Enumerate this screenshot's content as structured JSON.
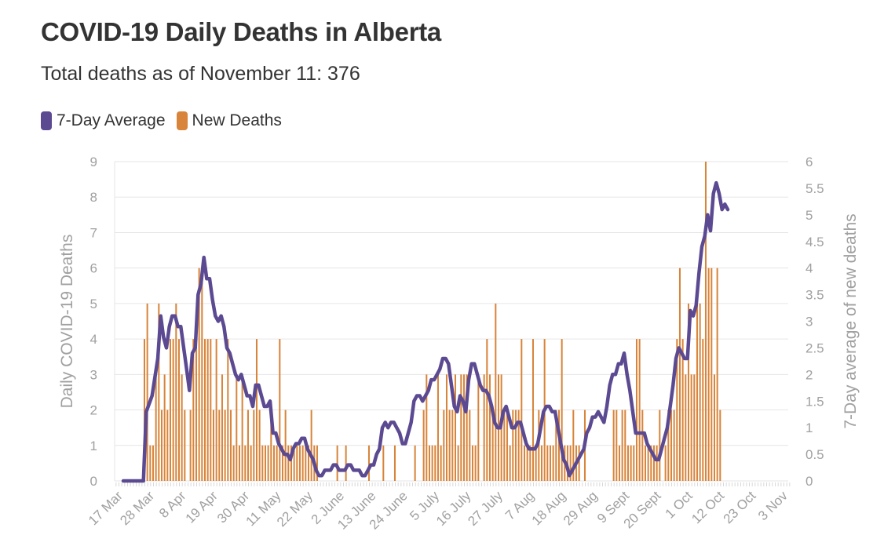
{
  "title": "COVID-19 Daily Deaths in Alberta",
  "subtitle": "Total deaths as of November 11: 376",
  "legend": [
    {
      "label": "7-Day Average",
      "color": "#5b4a91"
    },
    {
      "label": "New Deaths",
      "color": "#d8843a"
    }
  ],
  "chart_data": {
    "type": "bar+line",
    "title": "COVID-19 Daily Deaths in Alberta",
    "subtitle": "Total deaths as of November 11: 376",
    "ylabel_left": "Daily COVID-19 Deaths",
    "ylabel_right": "7-Day average of new deaths",
    "ylim_left": [
      0,
      9
    ],
    "ylim_right": [
      0,
      6
    ],
    "yticks_left": [
      "0",
      "1",
      "2",
      "3",
      "4",
      "5",
      "6",
      "7",
      "8",
      "9"
    ],
    "yticks_right": [
      "0",
      "0.5",
      "1",
      "1.5",
      "2",
      "2.5",
      "3",
      "3.5",
      "4",
      "4.5",
      "5",
      "5.5",
      "6"
    ],
    "xticks": [
      {
        "day": 0,
        "label": "17 Mar"
      },
      {
        "day": 11,
        "label": "28 Mar"
      },
      {
        "day": 22,
        "label": "8 Apr"
      },
      {
        "day": 33,
        "label": "19 Apr"
      },
      {
        "day": 44,
        "label": "30 Apr"
      },
      {
        "day": 55,
        "label": "11 May"
      },
      {
        "day": 66,
        "label": "22 May"
      },
      {
        "day": 77,
        "label": "2 June"
      },
      {
        "day": 88,
        "label": "13 June"
      },
      {
        "day": 99,
        "label": "24 June"
      },
      {
        "day": 110,
        "label": "5 July"
      },
      {
        "day": 121,
        "label": "16 July"
      },
      {
        "day": 132,
        "label": "27 July"
      },
      {
        "day": 143,
        "label": "7 Aug"
      },
      {
        "day": 154,
        "label": "18 Aug"
      },
      {
        "day": 165,
        "label": "29 Aug"
      },
      {
        "day": 176,
        "label": "9 Sept"
      },
      {
        "day": 187,
        "label": "20 Sept"
      },
      {
        "day": 198,
        "label": "1 Oct"
      },
      {
        "day": 209,
        "label": "12 Oct"
      },
      {
        "day": 220,
        "label": "23 Oct"
      },
      {
        "day": 231,
        "label": "3 Nov"
      }
    ],
    "start_date": "17 Mar",
    "series": [
      {
        "name": "New Deaths",
        "type": "bar",
        "color": "#d8843a",
        "values": [
          0,
          0,
          0,
          0,
          0,
          0,
          0,
          0,
          0,
          4,
          5,
          1,
          1,
          3,
          5,
          2,
          3,
          2,
          4,
          4,
          5,
          4,
          3,
          2,
          0,
          2,
          4,
          4,
          6,
          6,
          4,
          4,
          4,
          2,
          4,
          2,
          3,
          2,
          4,
          2,
          1,
          3,
          1,
          3,
          1,
          2,
          1,
          2,
          4,
          2,
          1,
          1,
          1,
          2,
          1,
          1,
          4,
          1,
          2,
          1,
          1,
          1,
          1,
          1,
          1,
          1,
          1,
          2,
          1,
          1,
          0,
          0,
          0,
          0,
          0,
          0,
          1,
          0,
          0,
          1,
          0,
          0,
          0,
          0,
          0,
          0,
          0,
          1,
          0,
          0,
          0,
          0,
          1,
          0,
          0,
          0,
          1,
          0,
          0,
          0,
          0,
          0,
          0,
          1,
          0,
          0,
          2,
          3,
          1,
          1,
          1,
          3,
          1,
          2,
          3,
          2,
          2,
          3,
          1,
          3,
          3,
          3,
          2,
          1,
          1,
          3,
          0,
          3,
          4,
          3,
          2,
          5,
          3,
          3,
          2,
          2,
          1,
          2,
          2,
          2,
          4,
          1,
          1,
          1,
          4,
          1,
          2,
          1,
          4,
          1,
          1,
          1,
          2,
          2,
          4,
          1,
          1,
          1,
          2,
          1,
          1,
          0,
          2,
          0,
          0,
          0,
          0,
          0,
          0,
          0,
          0,
          0,
          2,
          2,
          1,
          2,
          2,
          1,
          1,
          1,
          4,
          4,
          2,
          1,
          1,
          1,
          1,
          1,
          2,
          0,
          1,
          2,
          2,
          2,
          4,
          6,
          4,
          3,
          5,
          3,
          3,
          5,
          5,
          4,
          9,
          6,
          6,
          3,
          6,
          2
        ],
        "note_values": "Daily new deaths, one value per day starting 17 Mar"
      },
      {
        "name": "7-Day Average",
        "type": "line",
        "color": "#5b4a91",
        "keypoints": [
          [
            0,
            0
          ],
          [
            7,
            0
          ],
          [
            8,
            1.3
          ],
          [
            10,
            1.6
          ],
          [
            12,
            2.3
          ],
          [
            13,
            3.1
          ],
          [
            14,
            2.7
          ],
          [
            15,
            2.5
          ],
          [
            16,
            2.9
          ],
          [
            17,
            3.1
          ],
          [
            18,
            3.1
          ],
          [
            19,
            2.9
          ],
          [
            20,
            2.9
          ],
          [
            22,
            2.1
          ],
          [
            23,
            1.7
          ],
          [
            24,
            2.4
          ],
          [
            25,
            2.5
          ],
          [
            26,
            3.5
          ],
          [
            27,
            3.7
          ],
          [
            28,
            4.2
          ],
          [
            29,
            3.8
          ],
          [
            30,
            3.8
          ],
          [
            31,
            3.4
          ],
          [
            32,
            3.1
          ],
          [
            33,
            3.0
          ],
          [
            34,
            3.1
          ],
          [
            35,
            2.9
          ],
          [
            36,
            2.5
          ],
          [
            37,
            2.4
          ],
          [
            38,
            2.2
          ],
          [
            39,
            2.0
          ],
          [
            40,
            1.9
          ],
          [
            41,
            2.0
          ],
          [
            42,
            1.8
          ],
          [
            43,
            1.6
          ],
          [
            44,
            1.6
          ],
          [
            45,
            1.4
          ],
          [
            46,
            1.8
          ],
          [
            47,
            1.8
          ],
          [
            48,
            1.6
          ],
          [
            49,
            1.4
          ],
          [
            50,
            1.4
          ],
          [
            51,
            1.5
          ],
          [
            52,
            0.9
          ],
          [
            53,
            0.9
          ],
          [
            54,
            0.7
          ],
          [
            55,
            0.6
          ],
          [
            56,
            0.5
          ],
          [
            57,
            0.5
          ],
          [
            58,
            0.4
          ],
          [
            59,
            0.6
          ],
          [
            60,
            0.7
          ],
          [
            61,
            0.7
          ],
          [
            62,
            0.8
          ],
          [
            63,
            0.8
          ],
          [
            64,
            0.6
          ],
          [
            65,
            0.5
          ],
          [
            66,
            0.4
          ],
          [
            67,
            0.2
          ],
          [
            68,
            0.1
          ],
          [
            69,
            0.1
          ],
          [
            70,
            0.2
          ],
          [
            72,
            0.2
          ],
          [
            73,
            0.3
          ],
          [
            74,
            0.3
          ],
          [
            75,
            0.2
          ],
          [
            77,
            0.2
          ],
          [
            78,
            0.3
          ],
          [
            79,
            0.3
          ],
          [
            80,
            0.2
          ],
          [
            82,
            0.2
          ],
          [
            83,
            0.1
          ],
          [
            84,
            0.1
          ],
          [
            85,
            0.2
          ],
          [
            86,
            0.3
          ],
          [
            87,
            0.3
          ],
          [
            88,
            0.5
          ],
          [
            89,
            0.6
          ],
          [
            90,
            1.0
          ],
          [
            91,
            1.1
          ],
          [
            92,
            1.0
          ],
          [
            93,
            1.1
          ],
          [
            94,
            1.1
          ],
          [
            95,
            1.0
          ],
          [
            96,
            0.9
          ],
          [
            97,
            0.7
          ],
          [
            98,
            0.7
          ],
          [
            99,
            0.9
          ],
          [
            100,
            1.1
          ],
          [
            101,
            1.5
          ],
          [
            102,
            1.6
          ],
          [
            103,
            1.6
          ],
          [
            104,
            1.5
          ],
          [
            105,
            1.6
          ],
          [
            106,
            1.7
          ],
          [
            107,
            1.9
          ],
          [
            108,
            1.9
          ],
          [
            109,
            2.0
          ],
          [
            110,
            2.1
          ],
          [
            111,
            2.3
          ],
          [
            112,
            2.3
          ],
          [
            113,
            2.2
          ],
          [
            114,
            1.8
          ],
          [
            115,
            1.4
          ],
          [
            116,
            1.3
          ],
          [
            117,
            1.6
          ],
          [
            118,
            1.5
          ],
          [
            119,
            1.3
          ],
          [
            120,
            1.9
          ],
          [
            121,
            2.2
          ],
          [
            122,
            2.2
          ],
          [
            123,
            2.0
          ],
          [
            124,
            1.8
          ],
          [
            125,
            1.7
          ],
          [
            126,
            1.7
          ],
          [
            127,
            1.6
          ],
          [
            128,
            1.4
          ],
          [
            129,
            1.1
          ],
          [
            130,
            1.0
          ],
          [
            131,
            1.0
          ],
          [
            132,
            1.3
          ],
          [
            133,
            1.4
          ],
          [
            134,
            1.2
          ],
          [
            135,
            1.0
          ],
          [
            136,
            1.0
          ],
          [
            137,
            1.1
          ],
          [
            138,
            1.1
          ],
          [
            139,
            0.9
          ],
          [
            140,
            0.7
          ],
          [
            141,
            0.6
          ],
          [
            142,
            0.6
          ],
          [
            143,
            0.6
          ],
          [
            144,
            0.7
          ],
          [
            145,
            1.0
          ],
          [
            146,
            1.3
          ],
          [
            147,
            1.4
          ],
          [
            148,
            1.4
          ],
          [
            149,
            1.3
          ],
          [
            150,
            1.3
          ],
          [
            151,
            1.0
          ],
          [
            152,
            0.7
          ],
          [
            153,
            0.4
          ],
          [
            154,
            0.3
          ],
          [
            155,
            0.1
          ],
          [
            156,
            0.2
          ],
          [
            157,
            0.3
          ],
          [
            158,
            0.4
          ],
          [
            159,
            0.5
          ],
          [
            160,
            0.6
          ],
          [
            161,
            0.9
          ],
          [
            162,
            1.0
          ],
          [
            163,
            1.2
          ],
          [
            164,
            1.2
          ],
          [
            165,
            1.3
          ],
          [
            166,
            1.2
          ],
          [
            167,
            1.1
          ],
          [
            168,
            1.4
          ],
          [
            169,
            1.8
          ],
          [
            170,
            2.0
          ],
          [
            171,
            2.0
          ],
          [
            172,
            2.2
          ],
          [
            173,
            2.2
          ],
          [
            174,
            2.4
          ],
          [
            175,
            2.0
          ],
          [
            176,
            1.7
          ],
          [
            177,
            1.3
          ],
          [
            178,
            0.9
          ],
          [
            179,
            0.9
          ],
          [
            180,
            0.9
          ],
          [
            181,
            0.9
          ],
          [
            182,
            0.7
          ],
          [
            183,
            0.6
          ],
          [
            184,
            0.5
          ],
          [
            185,
            0.4
          ],
          [
            186,
            0.4
          ],
          [
            187,
            0.6
          ],
          [
            188,
            0.8
          ],
          [
            189,
            1.0
          ],
          [
            190,
            1.4
          ],
          [
            191,
            1.8
          ],
          [
            192,
            2.3
          ],
          [
            193,
            2.5
          ],
          [
            194,
            2.4
          ],
          [
            195,
            2.3
          ],
          [
            196,
            2.3
          ],
          [
            197,
            3.2
          ],
          [
            198,
            3.1
          ],
          [
            199,
            3.3
          ],
          [
            200,
            3.9
          ],
          [
            201,
            4.4
          ],
          [
            202,
            4.6
          ],
          [
            203,
            5.0
          ],
          [
            204,
            4.7
          ],
          [
            205,
            5.4
          ],
          [
            206,
            5.6
          ],
          [
            207,
            5.4
          ],
          [
            208,
            5.1
          ],
          [
            209,
            5.2
          ],
          [
            210,
            5.1
          ]
        ],
        "note_keypoints": "[day offset from 17 Mar, 7-day average value] in right-axis units"
      }
    ]
  }
}
